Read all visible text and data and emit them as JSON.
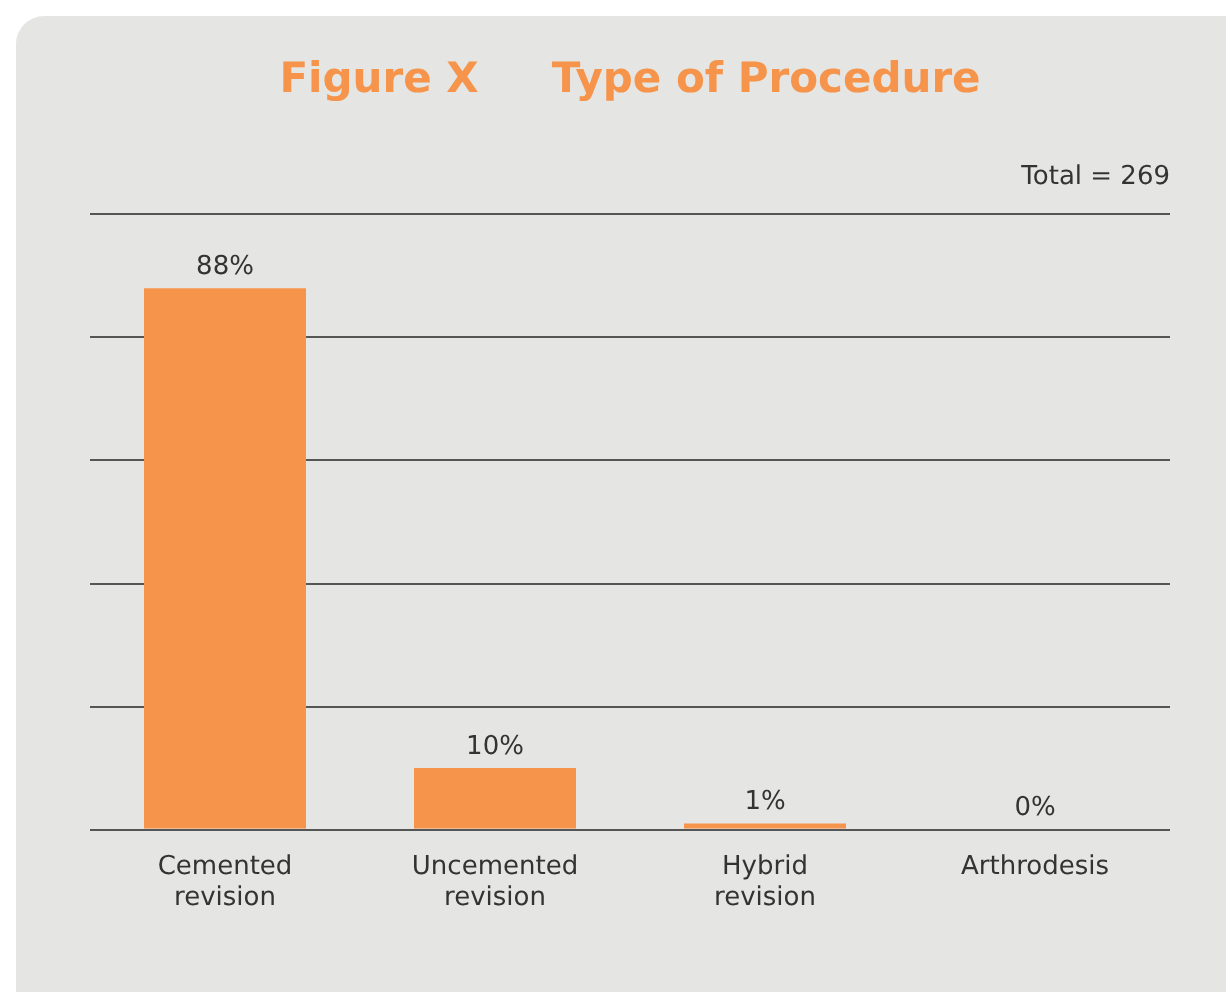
{
  "chart_data": {
    "type": "bar",
    "title": "Figure X     Type of Procedure",
    "categories": [
      "Cemented revision",
      "Uncemented revision",
      "Hybrid revision",
      "Arthrodesis"
    ],
    "values": [
      88,
      10,
      1,
      0
    ],
    "color": "#f5944a",
    "value_labels": [
      "88%",
      "10%",
      "1%",
      "0%"
    ],
    "ylim": [
      0,
      100
    ],
    "yticks": [
      {
        "value": 0,
        "label": null
      },
      {
        "value": 20,
        "label": null
      },
      {
        "value": 40,
        "label": null
      },
      {
        "value": 60,
        "label": null
      },
      {
        "value": 80,
        "label": null
      },
      {
        "value": 100,
        "label": null
      }
    ],
    "grid": "y",
    "tick_labels": "x",
    "annotations": [
      "Total = 269"
    ]
  }
}
